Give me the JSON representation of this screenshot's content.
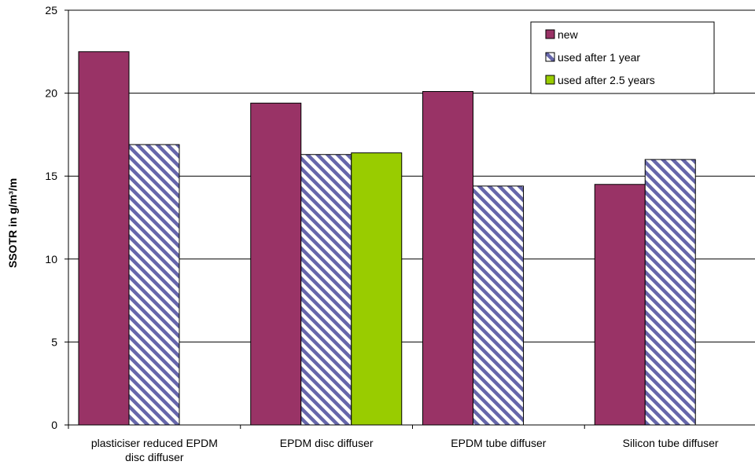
{
  "chart_data": {
    "type": "bar",
    "title": "",
    "xlabel": "",
    "ylabel": "SSOTR in g/m³/m",
    "ylim": [
      0,
      25
    ],
    "yticks": [
      0,
      5,
      10,
      15,
      20,
      25
    ],
    "grid": true,
    "legend_position": "top-right",
    "categories": [
      [
        "plasticiser reduced EPDM",
        "disc diffuser"
      ],
      [
        "EPDM disc diffuser"
      ],
      [
        "EPDM tube diffuser"
      ],
      [
        "Silicon tube diffuser"
      ]
    ],
    "series": [
      {
        "name": "new",
        "color": "#993366",
        "pattern": "solid",
        "values": [
          22.5,
          19.4,
          20.1,
          14.5
        ]
      },
      {
        "name": "used after 1 year",
        "color": "#6666aa",
        "pattern": "diagonal-stripes",
        "values": [
          16.9,
          16.3,
          14.4,
          16.0
        ]
      },
      {
        "name": "used after 2.5 years",
        "color": "#99cc00",
        "pattern": "solid",
        "values": [
          null,
          16.4,
          null,
          null
        ]
      }
    ]
  }
}
